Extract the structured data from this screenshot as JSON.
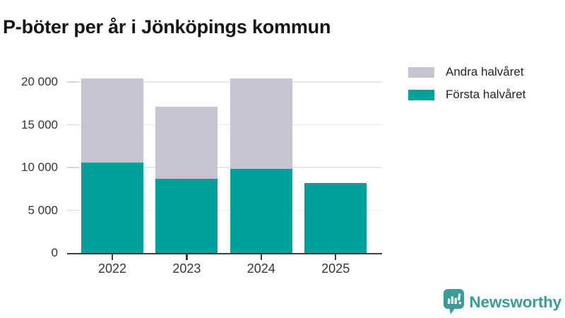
{
  "title": "P-böter per år i Jönköpings kommun",
  "chart_data": {
    "type": "bar",
    "stacked": true,
    "title": "P-böter per år i Jönköpings kommun",
    "xlabel": "",
    "ylabel": "",
    "categories": [
      "2022",
      "2023",
      "2024",
      "2025"
    ],
    "series": [
      {
        "name": "Första halvåret",
        "color": "#00a09b",
        "values": [
          10600,
          8700,
          9800,
          8200
        ]
      },
      {
        "name": "Andra halvåret",
        "color": "#c7c5d0",
        "values": [
          9850,
          8400,
          10650,
          0
        ]
      }
    ],
    "totals": [
      20450,
      17100,
      20450,
      8200
    ],
    "ylim": [
      0,
      21300
    ],
    "yticks": [
      {
        "value": 0,
        "label": "0"
      },
      {
        "value": 5000,
        "label": "5 000"
      },
      {
        "value": 10000,
        "label": "10 000"
      },
      {
        "value": 15000,
        "label": "15 000"
      },
      {
        "value": 20000,
        "label": "20 000"
      }
    ],
    "grid": true,
    "legend_position": "top-right"
  },
  "legend": {
    "items": [
      {
        "label": "Andra halvåret",
        "color": "#c7c5d0"
      },
      {
        "label": "Första halvåret",
        "color": "#00a09b"
      }
    ]
  },
  "branding": {
    "logo_text": "Newsworthy",
    "logo_color": "#399c96",
    "logo_icon": "newsworthy-speech-bubble-bar-chart-icon"
  },
  "colors": {
    "first_half": "#00a09b",
    "second_half": "#c7c5d0",
    "axis": "#3e3e40",
    "gridline": "#e8e8ea",
    "text": "#333336",
    "background": "#ffffff"
  }
}
